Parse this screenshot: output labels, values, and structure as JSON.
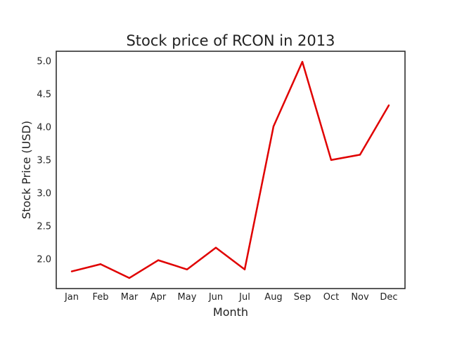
{
  "chart_data": {
    "type": "line",
    "title": "Stock price of RCON in 2013",
    "xlabel": "Month",
    "ylabel": "Stock Price (USD)",
    "categories": [
      "Jan",
      "Feb",
      "Mar",
      "Apr",
      "May",
      "Jun",
      "Jul",
      "Aug",
      "Sep",
      "Oct",
      "Nov",
      "Dec"
    ],
    "series": [
      {
        "values": [
          1.81,
          1.92,
          1.71,
          1.98,
          1.84,
          2.17,
          1.84,
          4.01,
          4.99,
          3.5,
          3.58,
          4.33
        ],
        "color": "#e00000"
      }
    ],
    "ylim": [
      1.55,
      5.15
    ],
    "yticks": [
      2.0,
      2.5,
      3.0,
      3.5,
      4.0,
      4.5,
      5.0
    ],
    "ytick_labels": [
      "2.0",
      "2.5",
      "3.0",
      "3.5",
      "4.0",
      "4.5",
      "5.0"
    ],
    "grid": false,
    "legend": false
  }
}
